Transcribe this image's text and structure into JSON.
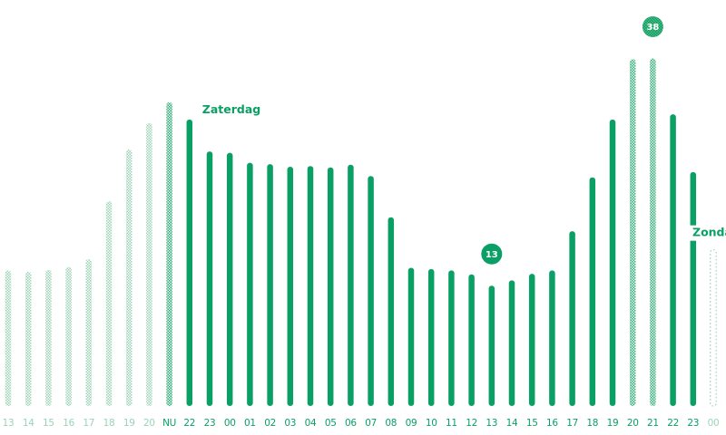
{
  "chart_data": {
    "type": "bar",
    "categories": [
      "13",
      "14",
      "15",
      "16",
      "17",
      "18",
      "19",
      "20",
      "NU",
      "22",
      "23",
      "00",
      "01",
      "02",
      "03",
      "04",
      "05",
      "06",
      "07",
      "08",
      "09",
      "10",
      "11",
      "12",
      "13",
      "14",
      "15",
      "16",
      "17",
      "18",
      "19",
      "20",
      "21",
      "22",
      "23",
      "00"
    ],
    "values": [
      20.4,
      20.2,
      20.5,
      20.9,
      22.1,
      30.8,
      38.6,
      42.6,
      45.7,
      43.1,
      38.3,
      38.1,
      36.6,
      36.4,
      36.0,
      36.1,
      35.9,
      36.3,
      34.6,
      28.4,
      20.8,
      20.6,
      20.4,
      19.8,
      18.1,
      18.9,
      19.9,
      20.4,
      26.3,
      34.4,
      43.1,
      52.2,
      52.3,
      43.9,
      35.2,
      23.5
    ],
    "segments": {
      "past": {
        "from": "13",
        "to": "20",
        "style": "hatched-light"
      },
      "now": {
        "index": 8,
        "style": "hatched-dark"
      },
      "forecast": {
        "style": "solid"
      },
      "peak": {
        "indices": [
          31,
          32
        ],
        "style": "hatched-dark"
      },
      "tail": {
        "index": 35,
        "style": "dotted-outline"
      }
    },
    "ylim": [
      0,
      60
    ],
    "annotations": [
      {
        "text": "Zaterdag",
        "at_index": 9
      },
      {
        "text": "Zonda",
        "at_index": 35
      }
    ],
    "badges": [
      {
        "text": "13",
        "at_index": 24
      },
      {
        "text": "38",
        "at_index": 32
      }
    ],
    "colors": {
      "accent": "#0aa065",
      "hatch_light": "#9bd3b6",
      "hatch_dark": "#31ad78",
      "badge_fill": "#0aa065",
      "badge_hatch": "#1fa86d",
      "text": "#0aa065",
      "background": "#ffffff"
    },
    "grid": false
  }
}
